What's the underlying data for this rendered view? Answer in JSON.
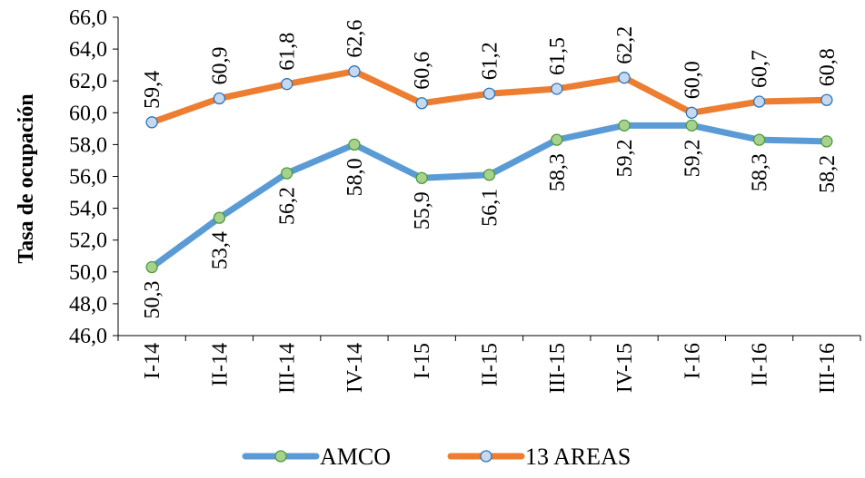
{
  "chart_data": {
    "type": "line",
    "title": "",
    "xlabel": "",
    "ylabel": "Tasa de ocupación",
    "ylim": [
      46,
      66
    ],
    "ytick_step": 2,
    "ytick_labels": [
      "46,0",
      "48,0",
      "50,0",
      "52,0",
      "54,0",
      "56,0",
      "58,0",
      "60,0",
      "62,0",
      "64,0",
      "66,0"
    ],
    "grid": false,
    "legend_position": "bottom-center",
    "categories": [
      "I-14",
      "II-14",
      "III-14",
      "IV-14",
      "I-15",
      "II-15",
      "III-15",
      "IV-15",
      "I-16",
      "II-16",
      "III-16"
    ],
    "series": [
      {
        "name": "AMCO",
        "color": "#5B9BD5",
        "marker_fill": "#A9D18E",
        "marker_stroke": "#4E9A3A",
        "values": [
          50.3,
          53.4,
          56.2,
          58.0,
          55.9,
          56.1,
          58.3,
          59.2,
          59.2,
          58.3,
          58.2
        ],
        "labels": [
          "50,3",
          "53,4",
          "56,2",
          "58,0",
          "55,9",
          "56,1",
          "58,3",
          "59,2",
          "59,2",
          "58,3",
          "58,2"
        ]
      },
      {
        "name": "13 AREAS",
        "color": "#ED7D31",
        "marker_fill": "#C5D9F1",
        "marker_stroke": "#2E75B6",
        "values": [
          59.4,
          60.9,
          61.8,
          62.6,
          60.6,
          61.2,
          61.5,
          62.2,
          60.0,
          60.7,
          60.8
        ],
        "labels": [
          "59,4",
          "60,9",
          "61,8",
          "62,6",
          "60,6",
          "61,2",
          "61,5",
          "62,2",
          "60,0",
          "60,7",
          "60,8"
        ]
      }
    ]
  }
}
